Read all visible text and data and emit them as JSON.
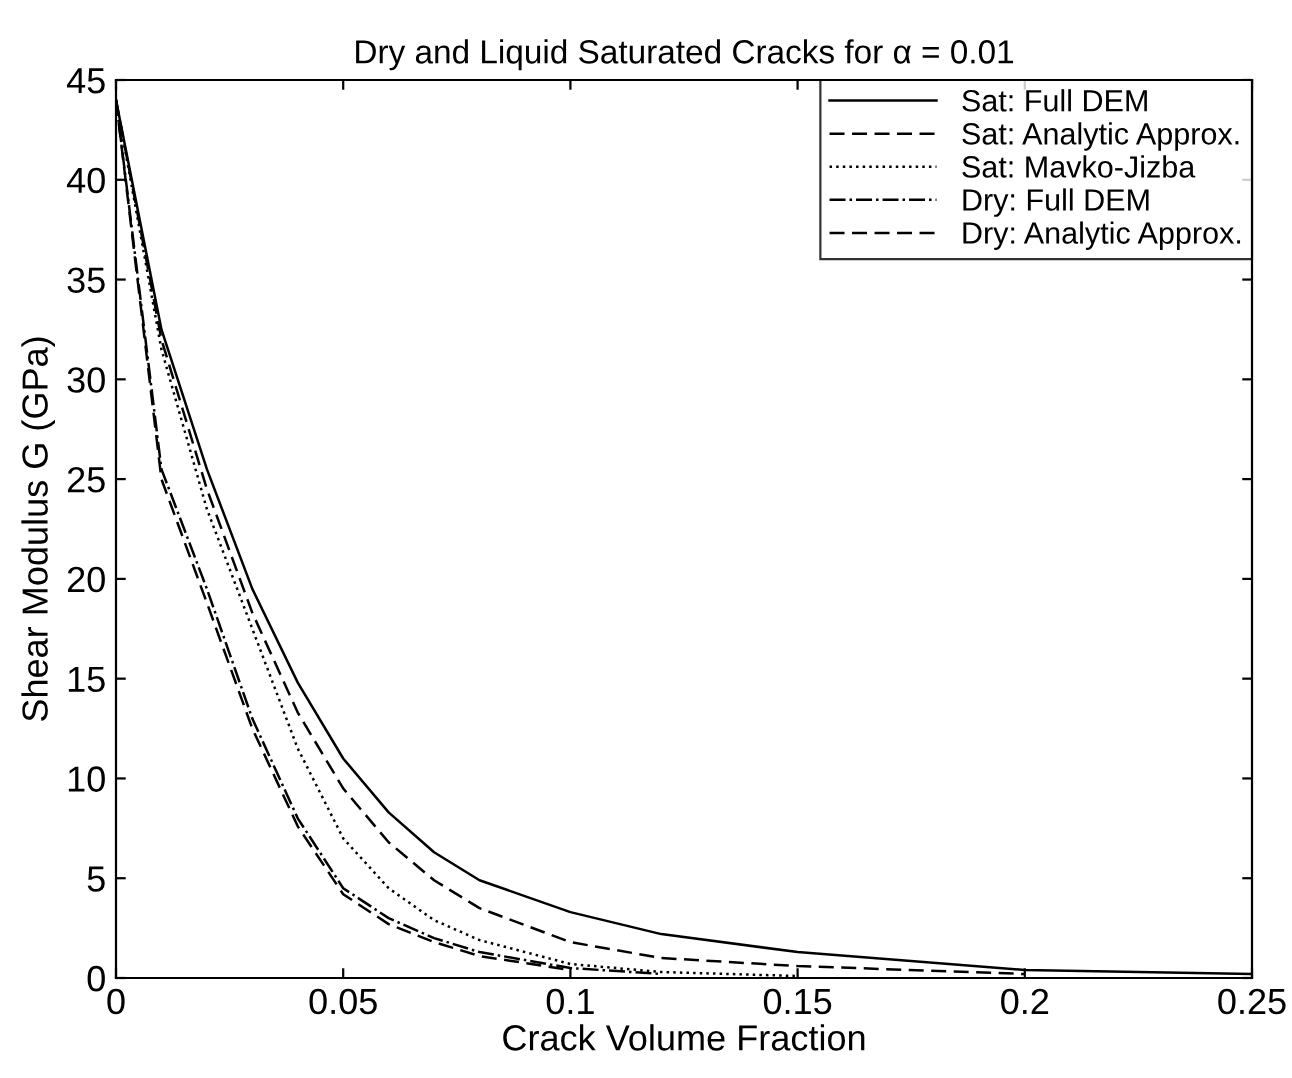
{
  "chart_data": {
    "type": "line",
    "title": "Dry and Liquid Saturated Cracks for α = 0.01",
    "xlabel": "Crack Volume Fraction",
    "ylabel": "Shear Modulus G (GPa)",
    "x": [
      0,
      0.01,
      0.02,
      0.03,
      0.04,
      0.05,
      0.06,
      0.07,
      0.08,
      0.1,
      0.12,
      0.15,
      0.2,
      0.25
    ],
    "series": [
      {
        "name": "Sat: Full DEM",
        "color": "#000000",
        "line_style": "solid",
        "values": [
          44,
          32.5,
          25.5,
          19.5,
          14.8,
          11.0,
          8.3,
          6.3,
          4.9,
          3.3,
          2.2,
          1.3,
          0.4,
          0.2
        ]
      },
      {
        "name": "Sat: Analytic Approx.",
        "color": "#000000",
        "line_style": "dashed",
        "x": [
          0,
          0.01,
          0.02,
          0.03,
          0.04,
          0.05,
          0.06,
          0.07,
          0.08,
          0.1,
          0.12,
          0.15,
          0.2
        ],
        "values": [
          44,
          32,
          24.5,
          18.3,
          13.3,
          9.5,
          6.8,
          4.9,
          3.5,
          1.8,
          1.0,
          0.6,
          0.2
        ]
      },
      {
        "name": "Sat: Mavko-Jizba",
        "color": "#000000",
        "line_style": "dotted",
        "x": [
          0,
          0.01,
          0.02,
          0.03,
          0.04,
          0.05,
          0.06,
          0.07,
          0.08,
          0.1,
          0.12,
          0.15
        ],
        "values": [
          44,
          31.5,
          23.5,
          17.5,
          11.5,
          7.0,
          4.5,
          2.9,
          1.9,
          0.7,
          0.3,
          0.1
        ]
      },
      {
        "name": "Dry: Full DEM",
        "color": "#000000",
        "line_style": "dashdot",
        "x": [
          0,
          0.01,
          0.02,
          0.03,
          0.04,
          0.05,
          0.06,
          0.07,
          0.08,
          0.1,
          0.12
        ],
        "values": [
          44,
          25.5,
          19.5,
          13,
          8.0,
          4.5,
          3.0,
          2.0,
          1.3,
          0.5,
          0.2
        ]
      },
      {
        "name": "Dry: Analytic Approx.",
        "color": "#000000",
        "line_style": "dashed",
        "x": [
          0,
          0.01,
          0.02,
          0.03,
          0.04,
          0.05,
          0.06,
          0.07,
          0.08,
          0.1
        ],
        "values": [
          44,
          25,
          18.8,
          12.5,
          7.6,
          4.2,
          2.7,
          1.8,
          1.1,
          0.4
        ]
      }
    ],
    "xlim": [
      0,
      0.25
    ],
    "xticks": [
      {
        "value": 0,
        "label": "0"
      },
      0.05,
      0.1,
      0.15,
      0.2,
      0.25
    ],
    "ylim": [
      0,
      45
    ],
    "yticks": [
      0,
      5,
      10,
      15,
      20,
      25,
      30,
      35,
      40,
      45
    ],
    "grid": false,
    "legend": "top right"
  }
}
